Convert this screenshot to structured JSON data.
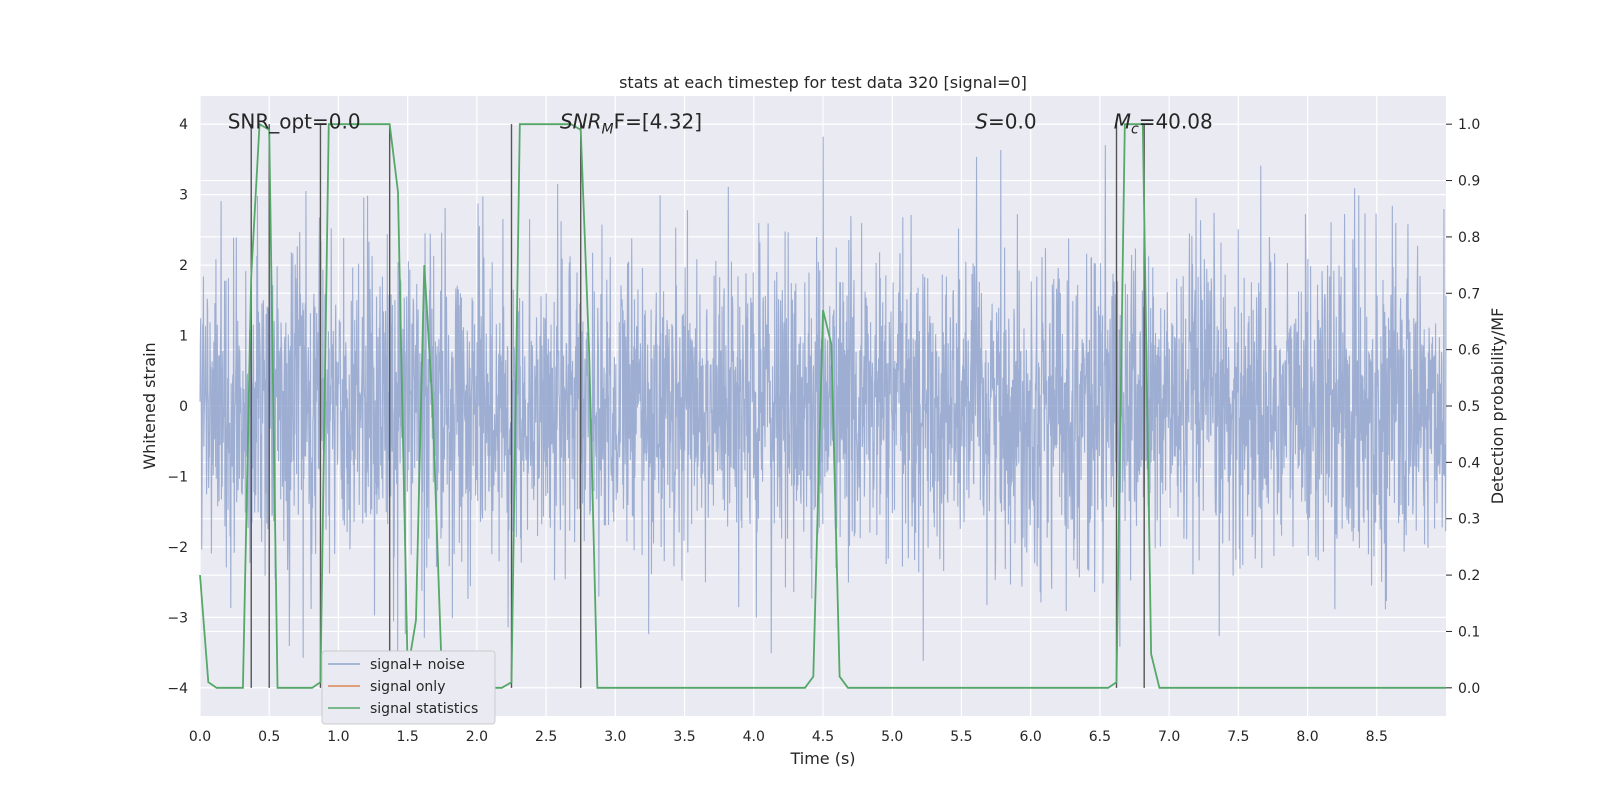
{
  "chart_data": {
    "type": "line",
    "title": "stats at each timestep for test data 320 [signal=0]",
    "xlabel": "Time (s)",
    "ylabel_left": "Whitened strain",
    "ylabel_right": "Detection probability/MF",
    "xlim": [
      0.0,
      9.0
    ],
    "ylim_left": [
      -4.4,
      4.4
    ],
    "ylim_right": [
      -0.05,
      1.05
    ],
    "x_ticks": [
      0.0,
      0.5,
      1.0,
      1.5,
      2.0,
      2.5,
      3.0,
      3.5,
      4.0,
      4.5,
      5.0,
      5.5,
      6.0,
      6.5,
      7.0,
      7.5,
      8.0,
      8.5
    ],
    "x_tick_labels": [
      "0.0",
      "0.5",
      "1.0",
      "1.5",
      "2.0",
      "2.5",
      "3.0",
      "3.5",
      "4.0",
      "4.5",
      "5.0",
      "5.5",
      "6.0",
      "6.5",
      "7.0",
      "7.5",
      "8.0",
      "8.5"
    ],
    "y_left_ticks": [
      -4,
      -3,
      -2,
      -1,
      0,
      1,
      2,
      3,
      4
    ],
    "y_left_tick_labels": [
      "−4",
      "−3",
      "−2",
      "−1",
      "0",
      "1",
      "2",
      "3",
      "4"
    ],
    "y_right_ticks": [
      0.0,
      0.1,
      0.2,
      0.3,
      0.4,
      0.5,
      0.6,
      0.7,
      0.8,
      0.9,
      1.0
    ],
    "y_right_tick_labels": [
      "0.0",
      "0.1",
      "0.2",
      "0.3",
      "0.4",
      "0.5",
      "0.6",
      "0.7",
      "0.8",
      "0.9",
      "1.0"
    ],
    "grid": true,
    "legend_position": "lower-left",
    "annotations": [
      {
        "text": "SNR_opt=0.0",
        "x": 0.2,
        "y": 4.05,
        "italic_prefix": "",
        "sub": "",
        "rest": ""
      },
      {
        "text": "",
        "x": 2.6,
        "y": 4.05,
        "italic_prefix": "SNR",
        "sub": "M",
        "rest": "F=[4.32]"
      },
      {
        "text": "",
        "x": 5.6,
        "y": 4.05,
        "italic_prefix": "S",
        "sub": "",
        "rest": "=0.0"
      },
      {
        "text": "",
        "x": 6.6,
        "y": 4.05,
        "italic_prefix": "M",
        "sub": "c",
        "rest": "=40.08"
      }
    ],
    "vertical_lines": [
      0.37,
      0.5,
      0.87,
      1.37,
      2.25,
      2.75,
      6.62,
      6.82
    ],
    "series": [
      {
        "name": "signal+ noise",
        "axis": "left",
        "color": "#8fa3cc",
        "noise_std": 0.75,
        "x_start": 0.0,
        "x_end": 9.0
      },
      {
        "name": "signal only",
        "axis": "left",
        "color": "#dd8452",
        "x": [],
        "y": []
      },
      {
        "name": "signal statistics",
        "axis": "right",
        "color": "#55a868",
        "x": [
          0.0,
          0.06,
          0.12,
          0.18,
          0.25,
          0.31,
          0.37,
          0.43,
          0.5,
          0.56,
          0.62,
          0.68,
          0.75,
          0.81,
          0.87,
          0.93,
          1.0,
          1.06,
          1.12,
          1.18,
          1.25,
          1.31,
          1.37,
          1.43,
          1.5,
          1.56,
          1.62,
          1.68,
          1.75,
          1.81,
          1.87,
          1.93,
          2.0,
          2.06,
          2.12,
          2.18,
          2.25,
          2.31,
          2.37,
          2.43,
          2.5,
          2.56,
          2.62,
          2.68,
          2.75,
          2.81,
          2.87,
          2.93,
          3.0,
          3.5,
          4.0,
          4.37,
          4.43,
          4.5,
          4.56,
          4.62,
          4.68,
          4.75,
          5.0,
          5.5,
          6.0,
          6.5,
          6.56,
          6.62,
          6.68,
          6.75,
          6.81,
          6.87,
          6.93,
          7.0,
          7.5,
          8.0,
          8.5,
          9.0
        ],
        "y": [
          0.2,
          0.01,
          0.0,
          0.0,
          0.0,
          0.0,
          0.73,
          1.0,
          0.99,
          0.0,
          0.0,
          0.0,
          0.0,
          0.0,
          0.01,
          1.0,
          1.0,
          1.0,
          1.0,
          1.0,
          1.0,
          1.0,
          1.0,
          0.88,
          0.03,
          0.12,
          0.75,
          0.5,
          0.0,
          0.0,
          0.0,
          0.0,
          0.0,
          0.0,
          0.0,
          0.0,
          0.01,
          1.0,
          1.0,
          1.0,
          1.0,
          1.0,
          1.0,
          1.0,
          0.99,
          0.6,
          0.0,
          0.0,
          0.0,
          0.0,
          0.0,
          0.0,
          0.02,
          0.67,
          0.61,
          0.02,
          0.0,
          0.0,
          0.0,
          0.0,
          0.0,
          0.0,
          0.0,
          0.01,
          1.0,
          1.0,
          1.0,
          0.06,
          0.0,
          0.0,
          0.0,
          0.0,
          0.0,
          0.0
        ]
      }
    ]
  }
}
